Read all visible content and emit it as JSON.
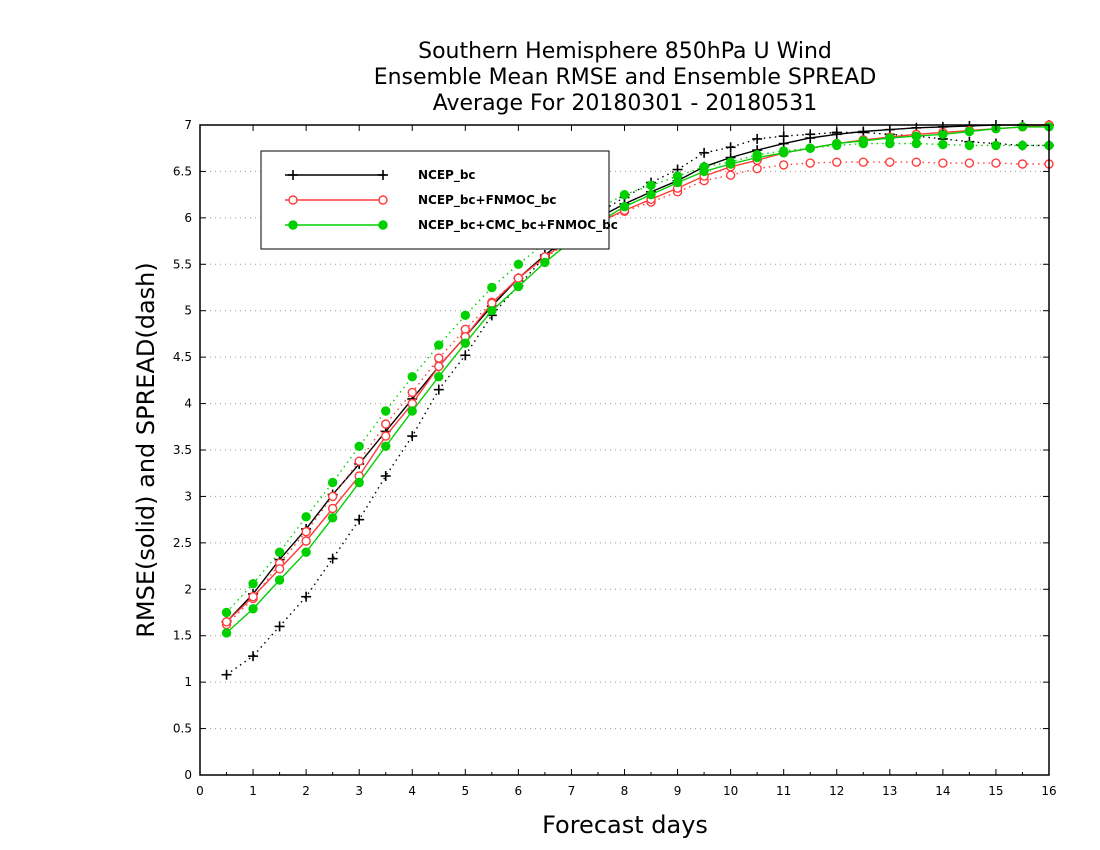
{
  "chart_data": {
    "type": "line",
    "title": [
      "Southern Hemisphere 850hPa U Wind",
      "Ensemble Mean RMSE and Ensemble SPREAD",
      "Average For 20180301 - 20180531"
    ],
    "xlabel": "Forecast days",
    "ylabel": "RMSE(solid) and SPREAD(dash)",
    "xlim": [
      0,
      16
    ],
    "ylim": [
      0,
      7
    ],
    "xticks": [
      "0",
      "1",
      "2",
      "3",
      "4",
      "5",
      "6",
      "7",
      "8",
      "9",
      "10",
      "11",
      "12",
      "13",
      "14",
      "15",
      "16"
    ],
    "yticks": [
      "0",
      "0.5",
      "1",
      "1.5",
      "2",
      "2.5",
      "3",
      "3.5",
      "4",
      "4.5",
      "5",
      "5.5",
      "6",
      "6.5",
      "7"
    ],
    "grid": "horizontal dotted",
    "legend_position": "top-left",
    "x": [
      0.5,
      1,
      1.5,
      2,
      2.5,
      3,
      3.5,
      4,
      4.5,
      5,
      5.5,
      6,
      6.5,
      7,
      7.5,
      8,
      8.5,
      9,
      9.5,
      10,
      10.5,
      11,
      11.5,
      12,
      12.5,
      13,
      13.5,
      14,
      14.5,
      15,
      15.5,
      16
    ],
    "series": [
      {
        "name": "NCEP_bc",
        "color": "#000000",
        "marker": "plus",
        "rmse": [
          1.65,
          1.95,
          2.32,
          2.65,
          3.02,
          3.35,
          3.7,
          4.05,
          4.4,
          4.72,
          5.05,
          5.35,
          5.6,
          5.82,
          6.0,
          6.15,
          6.28,
          6.4,
          6.55,
          6.65,
          6.73,
          6.8,
          6.86,
          6.9,
          6.93,
          6.95,
          6.97,
          6.98,
          6.99,
          7.0,
          7.0,
          7.0
        ],
        "spread": [
          1.08,
          1.28,
          1.6,
          1.92,
          2.33,
          2.75,
          3.22,
          3.65,
          4.15,
          4.52,
          4.95,
          5.27,
          5.58,
          5.82,
          6.05,
          6.22,
          6.38,
          6.52,
          6.7,
          6.76,
          6.85,
          6.88,
          6.9,
          6.92,
          6.92,
          6.9,
          6.88,
          6.85,
          6.82,
          6.8,
          6.78,
          6.78
        ]
      },
      {
        "name": "NCEP_bc+FNMOC_bc",
        "color": "#ff3b3b",
        "marker": "open-circle",
        "rmse": [
          1.65,
          1.92,
          2.22,
          2.52,
          2.87,
          3.22,
          3.65,
          4.0,
          4.4,
          4.72,
          5.08,
          5.35,
          5.58,
          5.78,
          5.95,
          6.08,
          6.2,
          6.32,
          6.45,
          6.55,
          6.62,
          6.7,
          6.75,
          6.8,
          6.84,
          6.87,
          6.9,
          6.92,
          6.94,
          6.96,
          6.98,
          7.0
        ],
        "spread": [
          1.62,
          1.9,
          2.28,
          2.62,
          3.0,
          3.38,
          3.78,
          4.12,
          4.49,
          4.8,
          5.09,
          5.35,
          5.57,
          5.76,
          5.95,
          6.07,
          6.17,
          6.28,
          6.4,
          6.46,
          6.53,
          6.57,
          6.59,
          6.6,
          6.6,
          6.6,
          6.6,
          6.59,
          6.59,
          6.59,
          6.58,
          6.58
        ]
      },
      {
        "name": "NCEP_bc+CMC_bc+FNMOC_bc",
        "color": "#00d000",
        "marker": "filled-circle",
        "rmse": [
          1.53,
          1.79,
          2.1,
          2.4,
          2.77,
          3.15,
          3.54,
          3.92,
          4.29,
          4.65,
          5.0,
          5.26,
          5.52,
          5.75,
          5.95,
          6.12,
          6.25,
          6.38,
          6.5,
          6.58,
          6.65,
          6.7,
          6.75,
          6.8,
          6.83,
          6.86,
          6.88,
          6.9,
          6.93,
          6.96,
          6.98,
          6.98
        ],
        "spread": [
          1.75,
          2.06,
          2.4,
          2.78,
          3.15,
          3.54,
          3.92,
          4.29,
          4.63,
          4.95,
          5.25,
          5.5,
          5.73,
          5.93,
          6.1,
          6.25,
          6.35,
          6.45,
          6.55,
          6.6,
          6.68,
          6.72,
          6.75,
          6.78,
          6.8,
          6.8,
          6.8,
          6.79,
          6.78,
          6.78,
          6.78,
          6.78
        ]
      }
    ]
  }
}
